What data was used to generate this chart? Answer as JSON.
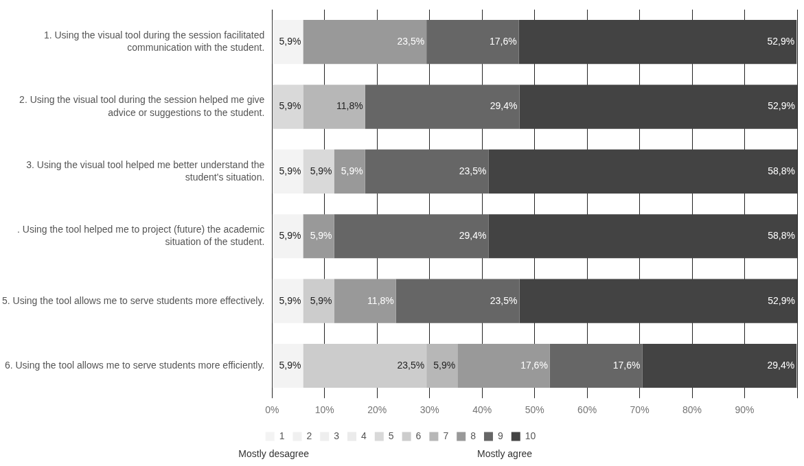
{
  "chart_data": {
    "type": "bar",
    "orientation": "horizontal",
    "stacked": true,
    "categories": [
      "1. Using the visual tool during the session facilitated communication with the student.",
      "2. Using the visual tool during the session helped me give advice or suggestions to the student.",
      "3. Using the visual tool helped me better understand the student's situation.",
      ". Using the tool helped me to project (future) the academic situation of the student.",
      "5. Using the tool allows me to serve students more effectively.",
      "6. Using the tool allows me to serve students more efficiently."
    ],
    "series": [
      {
        "name": "1",
        "color": "#f3f3f3",
        "values": [
          5.9,
          null,
          5.9,
          5.9,
          5.9,
          5.9
        ],
        "value_labels": [
          "5,9%",
          null,
          "5,9%",
          "5,9%",
          "5,9%",
          "5,9%"
        ]
      },
      {
        "name": "2",
        "color": "#f0f0f0",
        "values": [
          null,
          null,
          null,
          null,
          null,
          null
        ]
      },
      {
        "name": "3",
        "color": "#eeeeee",
        "values": [
          null,
          null,
          null,
          null,
          null,
          null
        ]
      },
      {
        "name": "4",
        "color": "#ebebeb",
        "values": [
          null,
          null,
          null,
          null,
          null,
          null
        ]
      },
      {
        "name": "5",
        "color": "#d9d9d9",
        "values": [
          null,
          5.9,
          5.9,
          null,
          null,
          null
        ],
        "value_labels": [
          null,
          "5,9%",
          "5,9%",
          null,
          null,
          null
        ]
      },
      {
        "name": "6",
        "color": "#cccccc",
        "values": [
          null,
          null,
          null,
          null,
          5.9,
          23.5
        ],
        "value_labels": [
          null,
          null,
          null,
          null,
          "5,9%",
          "23,5%"
        ]
      },
      {
        "name": "7",
        "color": "#b7b7b7",
        "values": [
          null,
          11.8,
          null,
          null,
          null,
          5.9
        ],
        "value_labels": [
          null,
          "11,8%",
          null,
          null,
          null,
          "5,9%"
        ]
      },
      {
        "name": "8",
        "color": "#999999",
        "values": [
          23.5,
          null,
          5.9,
          5.9,
          11.8,
          17.6
        ],
        "value_labels": [
          "23,5%",
          null,
          "5,9%",
          "5,9%",
          "11,8%",
          "17,6%"
        ]
      },
      {
        "name": "9",
        "color": "#666666",
        "values": [
          17.6,
          29.4,
          23.5,
          29.4,
          23.5,
          17.6
        ],
        "value_labels": [
          "17,6%",
          "29,4%",
          "23,5%",
          "29,4%",
          "23,5%",
          "17,6%"
        ]
      },
      {
        "name": "10",
        "color": "#434343",
        "values": [
          52.9,
          52.9,
          58.8,
          58.8,
          52.9,
          29.4
        ],
        "value_labels": [
          "52,9%",
          "52,9%",
          "58,8%",
          "58,8%",
          "52,9%",
          "29,4%"
        ]
      }
    ],
    "xlim": [
      0,
      100
    ],
    "xticks": [
      {
        "value": 0,
        "label": "0%"
      },
      {
        "value": 10,
        "label": "10%"
      },
      {
        "value": 20,
        "label": "20%"
      },
      {
        "value": 30,
        "label": "30%"
      },
      {
        "value": 40,
        "label": "40%"
      },
      {
        "value": 50,
        "label": "50%"
      },
      {
        "value": 60,
        "label": "60%"
      },
      {
        "value": 70,
        "label": "70%"
      },
      {
        "value": 80,
        "label": "80%"
      },
      {
        "value": 90,
        "label": "90%"
      },
      {
        "value": 100,
        "label": null
      }
    ],
    "grid": "x",
    "legend": "bottom",
    "annotations": [
      "Mostly desagree",
      "Mostly agree"
    ]
  }
}
